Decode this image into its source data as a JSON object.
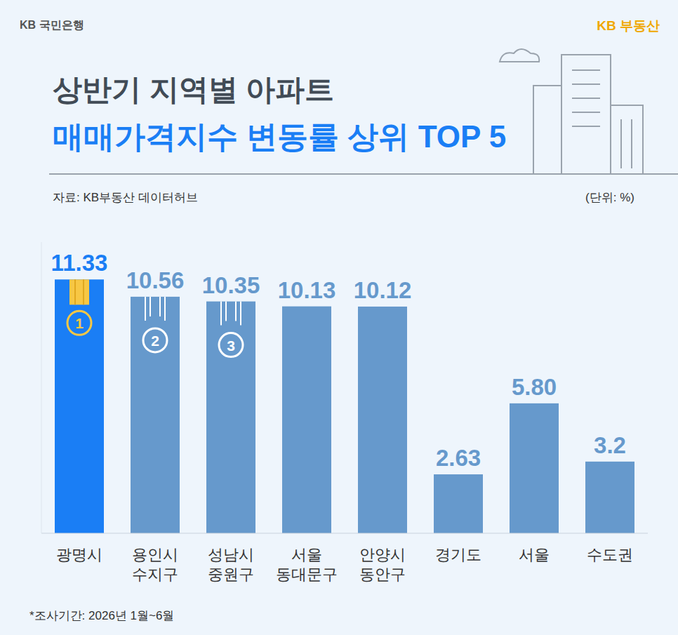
{
  "chart_data": {
    "type": "bar",
    "brand_left": "KB 국민은행",
    "brand_right": "KB 부동산",
    "title": "상반기 지역별 아파트",
    "subtitle": "매매가격지수 변동률 상위 TOP 5",
    "source": "자료: KB부동산 데이터허브",
    "unit": "(단위: %)",
    "note": "*조사기간: 2026년 1월~6월",
    "categories": [
      "광명시",
      "용인시 수지구",
      "성남시 중원구",
      "서울 동대문구",
      "안양시 동안구",
      "경기도",
      "서울",
      "수도권"
    ],
    "values": [
      11.33,
      10.56,
      10.35,
      10.13,
      10.12,
      2.63,
      5.8,
      3.2
    ],
    "value_labels": [
      "11.33",
      "10.56",
      "10.35",
      "10.13",
      "10.12",
      "2.63",
      "5.80",
      "3.2"
    ],
    "ranks": [
      "1",
      "2",
      "3"
    ],
    "colors": [
      "#1a7ef5",
      "#6699cc",
      "#6699cc",
      "#6699cc",
      "#6699cc",
      "#6699cc",
      "#6699cc",
      "#6699cc"
    ],
    "ylim": [
      0,
      13
    ],
    "data_labels": true,
    "tick_labels": "x",
    "grid": false
  }
}
